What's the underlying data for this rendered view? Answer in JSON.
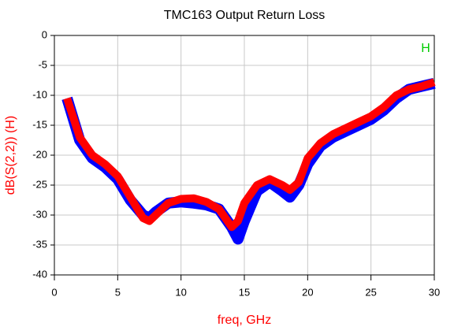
{
  "chart_data": {
    "type": "line",
    "title": "TMC163 Output Return Loss",
    "xlabel": "freq, GHz",
    "ylabel": "dB(S(2,2)) (H)",
    "legend": "H",
    "legend_color": "#00cc00",
    "legend_position": "top-right",
    "label_color": "#ff0000",
    "x": [
      1,
      2,
      3,
      4,
      5,
      6,
      7,
      7.5,
      8,
      9,
      10,
      11,
      12,
      13,
      14,
      14.5,
      15,
      16,
      17,
      18,
      18.6,
      19.3,
      20,
      21,
      22,
      23,
      24,
      25,
      26,
      27,
      28,
      29,
      30
    ],
    "series": [
      {
        "color": "#0000ff",
        "width": 14,
        "values": [
          -10.5,
          -17.5,
          -20.5,
          -22,
          -24,
          -27.5,
          -30,
          -30.5,
          -29.5,
          -28,
          -27.8,
          -28,
          -28.3,
          -29,
          -32,
          -34,
          -31,
          -26,
          -24.5,
          -26,
          -27,
          -25,
          -21.5,
          -18.5,
          -17,
          -16,
          -15,
          -14,
          -12.5,
          -10.5,
          -9,
          -8.5,
          -8
        ]
      },
      {
        "color": "#ff0000",
        "width": 10,
        "values": [
          -10.5,
          -17,
          -20,
          -21.5,
          -23.5,
          -27,
          -30.5,
          -31,
          -30,
          -28,
          -27.3,
          -27.2,
          -27.8,
          -29,
          -32,
          -31,
          -28,
          -25,
          -24,
          -25,
          -25.8,
          -24.5,
          -20.5,
          -18,
          -16.5,
          -15.5,
          -14.5,
          -13.5,
          -12,
          -10,
          -9,
          -8.5,
          -7.8
        ]
      }
    ],
    "xlim": [
      0,
      30
    ],
    "xticks": [
      0,
      5,
      10,
      15,
      20,
      25,
      30
    ],
    "ylim": [
      -40,
      0
    ],
    "yticks": [
      0,
      -5,
      -10,
      -15,
      -20,
      -25,
      -30,
      -35,
      -40
    ],
    "grid": true
  }
}
